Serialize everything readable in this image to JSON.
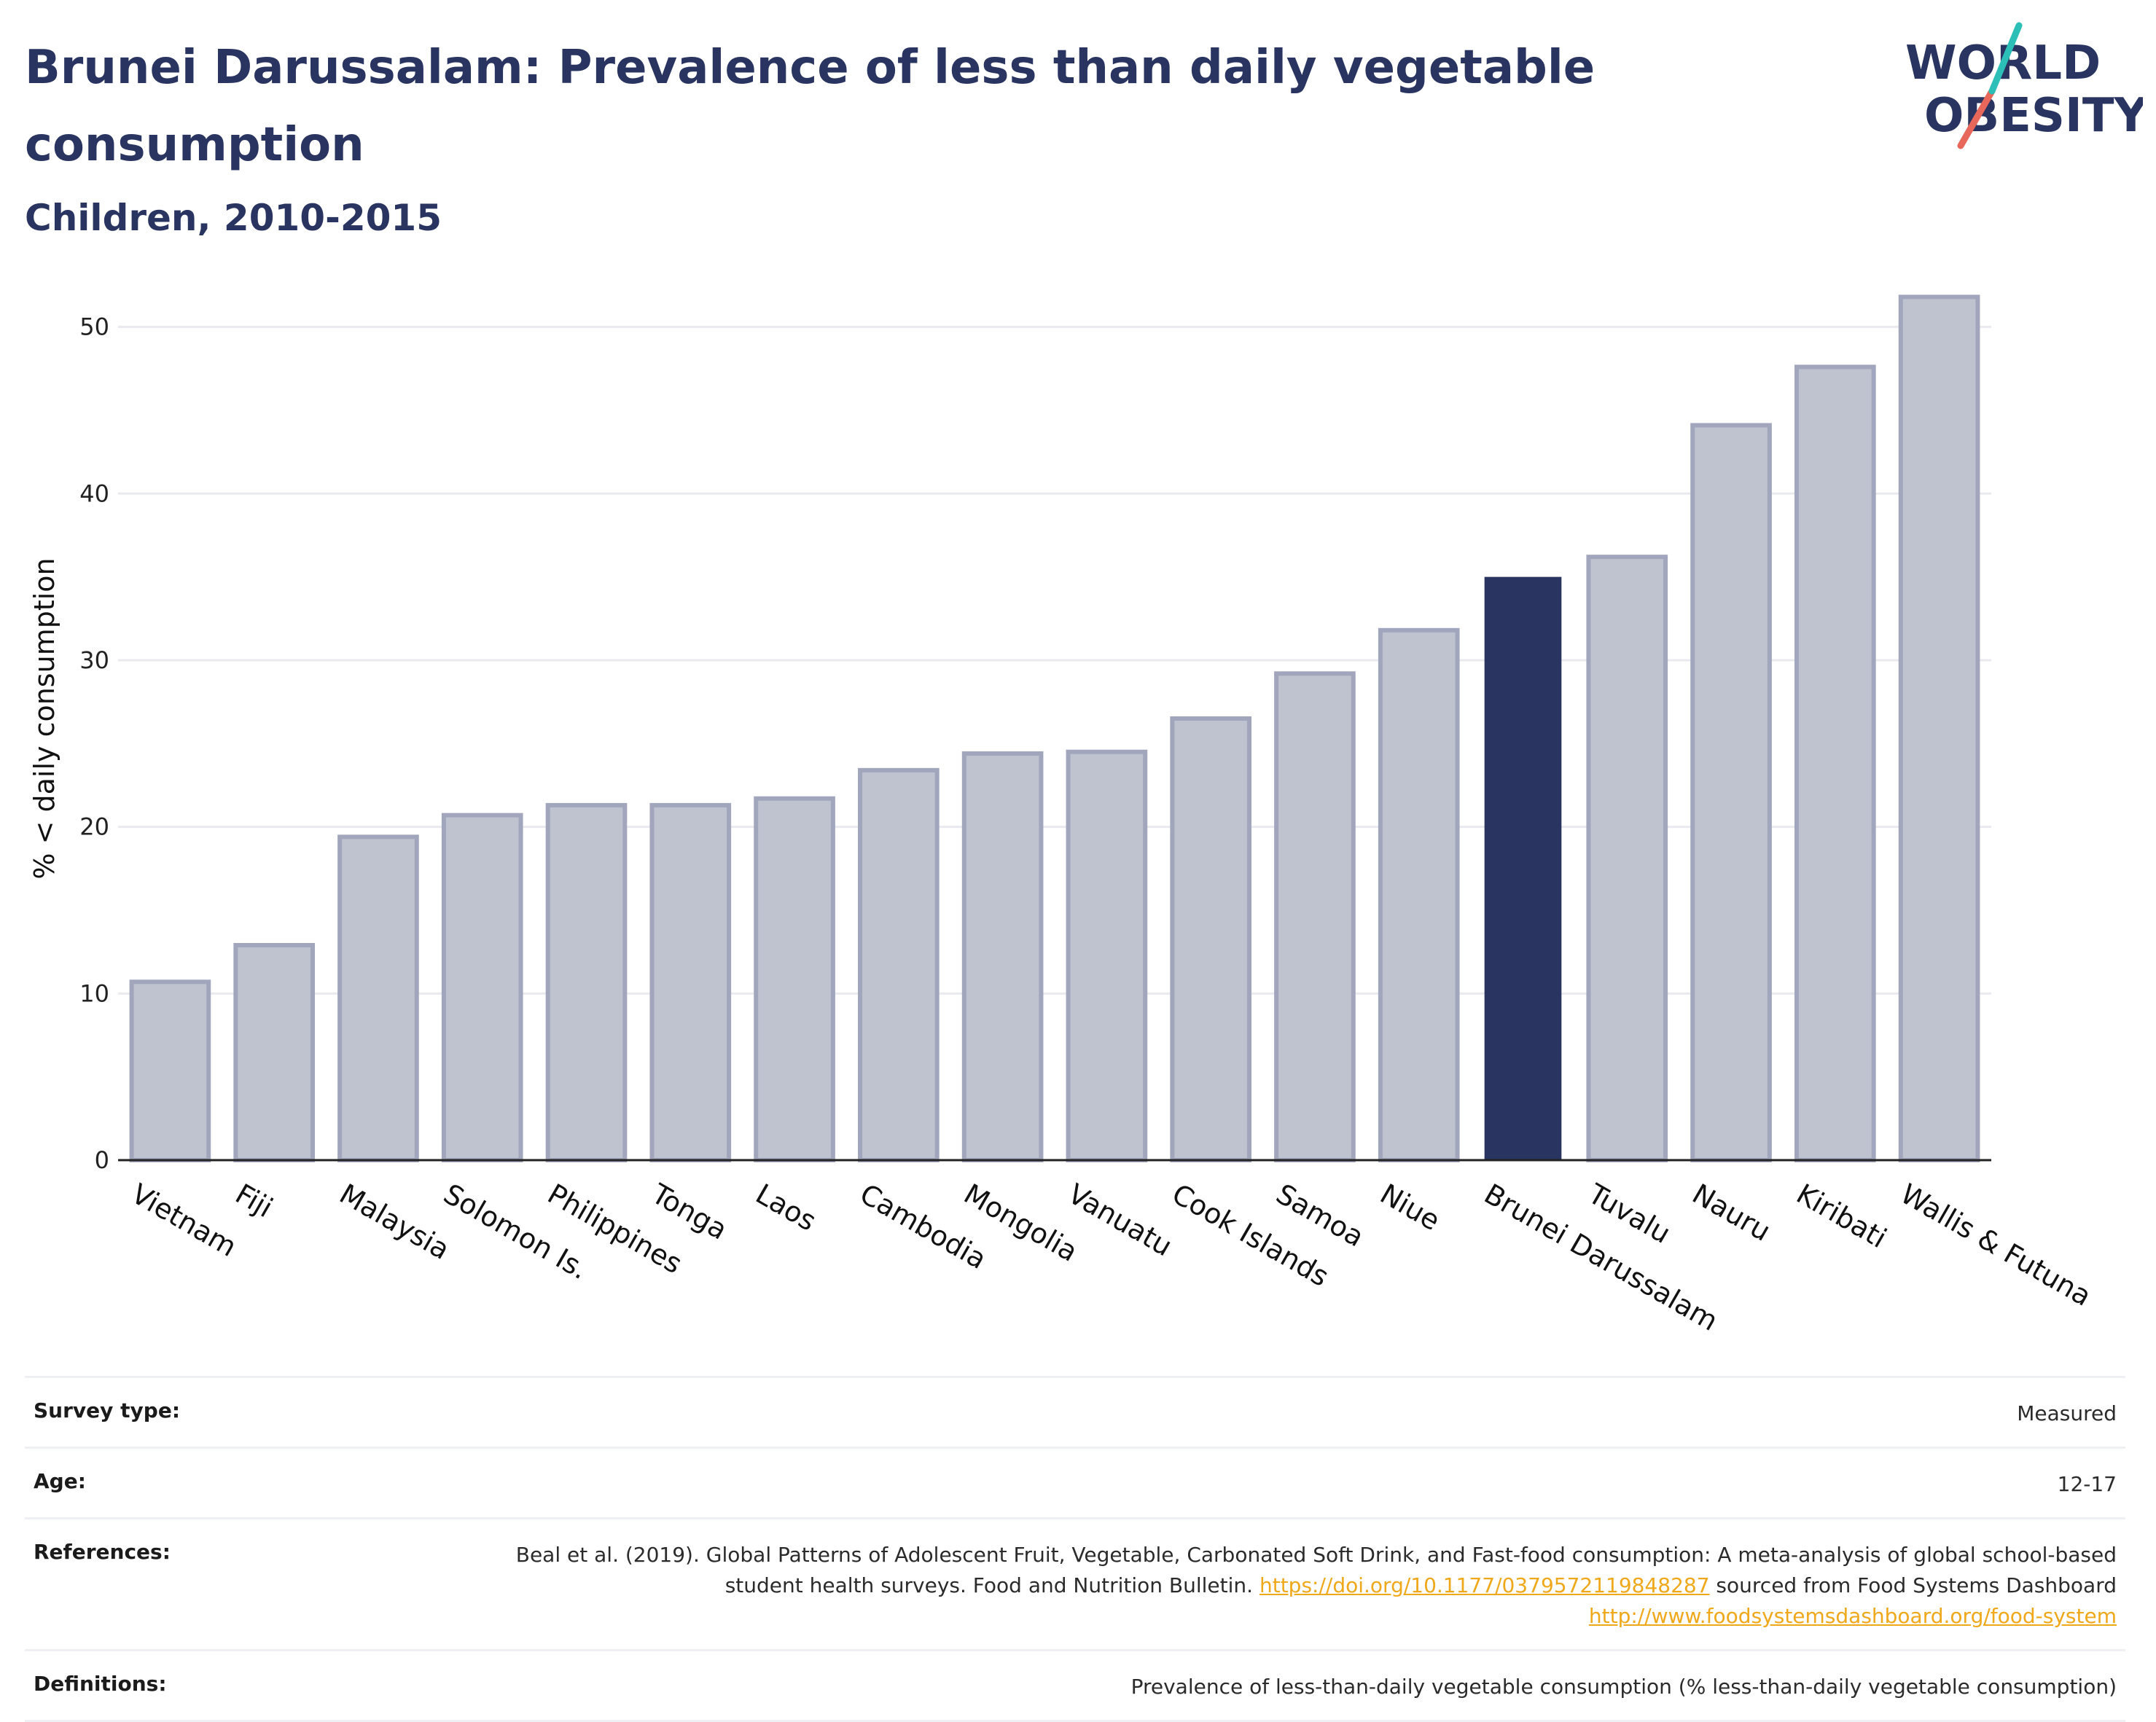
{
  "header": {
    "title": "Brunei Darussalam: Prevalence of less than daily vegetable consumption",
    "subtitle": "Children, 2010-2015"
  },
  "logo": {
    "line1": "WORLD",
    "line2": "OBESITY"
  },
  "chart_data": {
    "type": "bar",
    "ylabel": "% < daily consumption",
    "xlabel": "",
    "ylim": [
      0,
      53
    ],
    "yticks": [
      0,
      10,
      20,
      30,
      40,
      50
    ],
    "grid": true,
    "highlight": "Brunei Darussalam",
    "categories": [
      "Vietnam",
      "Fiji",
      "Malaysia",
      "Solomon Is.",
      "Philippines",
      "Tonga",
      "Laos",
      "Cambodia",
      "Mongolia",
      "Vanuatu",
      "Cook Islands",
      "Samoa",
      "Niue",
      "Brunei Darussalam",
      "Tuvalu",
      "Nauru",
      "Kiribati",
      "Wallis & Futuna"
    ],
    "values": [
      10.7,
      12.9,
      19.4,
      20.7,
      21.3,
      21.3,
      21.7,
      23.4,
      24.4,
      24.5,
      26.5,
      29.2,
      31.8,
      35.0,
      36.2,
      44.1,
      47.6,
      51.8
    ]
  },
  "colors": {
    "bar": "#bfc2cf",
    "bar_edge": "#a1a6bd",
    "highlight": "#2a3461",
    "grid": "#e9eaef",
    "logo_teal": "#2bbfb8",
    "logo_coral": "#e7685a"
  },
  "meta": {
    "survey_label": "Survey type:",
    "survey_value": "Measured",
    "age_label": "Age:",
    "age_value": "12-17",
    "references_label": "References:",
    "references_text_1": "Beal et al. (2019). Global Patterns of Adolescent Fruit, Vegetable, Carbonated Soft Drink, and Fast-food consumption: A meta-analysis of global school-based student health surveys. Food and Nutrition Bulletin. ",
    "references_link_1": "https://doi.org/10.1177/0379572119848287",
    "references_text_2": " sourced from Food Systems Dashboard ",
    "references_link_2": "http://www.foodsystemsdashboard.org/food-system",
    "definitions_label": "Definitions:",
    "definitions_value": "Prevalence of less-than-daily vegetable consumption (% less-than-daily vegetable consumption)"
  }
}
